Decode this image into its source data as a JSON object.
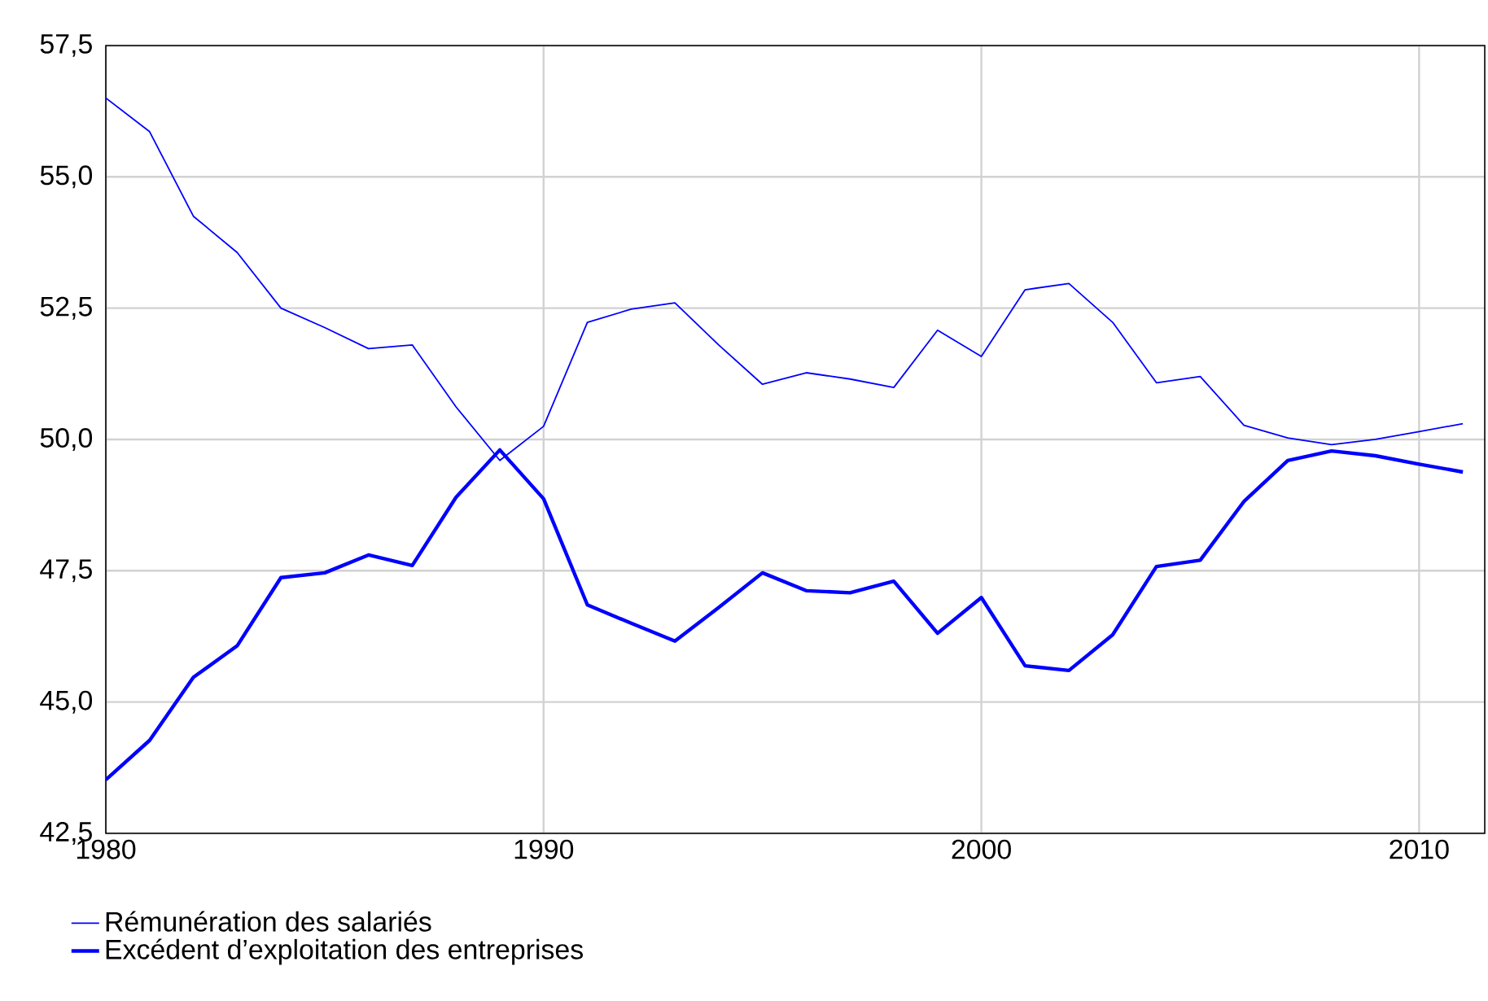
{
  "chart_data": {
    "type": "line",
    "x": [
      1980,
      1981,
      1982,
      1983,
      1984,
      1985,
      1986,
      1987,
      1988,
      1989,
      1990,
      1991,
      1992,
      1993,
      1994,
      1995,
      1996,
      1997,
      1998,
      1999,
      2000,
      2001,
      2002,
      2003,
      2004,
      2005,
      2006,
      2007,
      2008,
      2009,
      2010,
      2011
    ],
    "series": [
      {
        "name": "Rémunération des salariés",
        "color": "#0000ff",
        "values": [
          56.5,
          55.86,
          54.25,
          53.56,
          52.5,
          52.13,
          51.73,
          51.8,
          50.62,
          49.6,
          50.25,
          52.23,
          52.48,
          52.6,
          51.8,
          51.05,
          51.27,
          51.15,
          50.99,
          52.08,
          51.58,
          52.85,
          52.97,
          52.23,
          51.08,
          51.2,
          50.27,
          50.03,
          49.9,
          50.0,
          50.15,
          50.3
        ]
      },
      {
        "name": "Excédent d’exploitation des entreprises",
        "color": "#0000ff",
        "values": [
          43.52,
          44.27,
          45.47,
          46.07,
          47.37,
          47.46,
          47.8,
          47.6,
          48.9,
          49.8,
          48.87,
          46.85,
          46.5,
          46.16,
          46.8,
          47.46,
          47.12,
          47.08,
          47.3,
          46.31,
          46.99,
          45.69,
          45.6,
          46.28,
          47.58,
          47.7,
          48.82,
          49.6,
          49.78,
          49.69,
          49.53,
          49.38
        ]
      }
    ],
    "xlim": [
      1980,
      2011.5
    ],
    "xticks": [
      1980,
      1990,
      2000,
      2010
    ],
    "ylim": [
      42.5,
      57.5
    ],
    "yticks": [
      {
        "value": 42.5,
        "label": "42,5"
      },
      {
        "value": 45,
        "label": "45,0"
      },
      {
        "value": 47.5,
        "label": "47,5"
      },
      {
        "value": 50,
        "label": "50,0"
      },
      {
        "value": 52.5,
        "label": "52,5"
      },
      {
        "value": 55,
        "label": "55,0"
      },
      {
        "value": 57.5,
        "label": "57,5"
      }
    ],
    "grid": true,
    "legend": "bottom",
    "marker": "none",
    "line_style": "solid"
  }
}
